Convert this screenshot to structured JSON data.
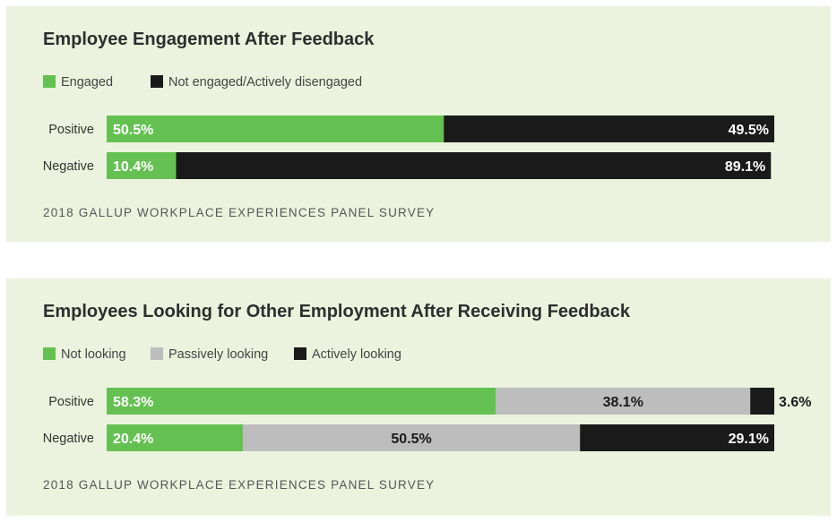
{
  "colors": {
    "green": "#64c151",
    "gray": "#bdbdbd",
    "black": "#1a1a1a",
    "panel_bg": "#ebf3de"
  },
  "chart_data": [
    {
      "type": "bar",
      "orientation": "horizontal",
      "stacked": true,
      "title": "Employee Engagement After Feedback",
      "categories": [
        "Positive",
        "Negative"
      ],
      "series": [
        {
          "name": "Engaged",
          "color": "#64c151",
          "values": [
            50.5,
            10.4
          ],
          "labels": [
            "50.5%",
            "10.4%"
          ]
        },
        {
          "name": "Not engaged/Actively disengaged",
          "color": "#1a1a1a",
          "values": [
            49.5,
            89.1
          ],
          "labels": [
            "49.5%",
            "89.1%"
          ]
        }
      ],
      "xlim": [
        0,
        100
      ],
      "legend_position": "top-left",
      "source": "2018 GALLUP WORKPLACE EXPERIENCES PANEL SURVEY"
    },
    {
      "type": "bar",
      "orientation": "horizontal",
      "stacked": true,
      "title": "Employees Looking for Other Employment After Receiving Feedback",
      "categories": [
        "Positive",
        "Negative"
      ],
      "series": [
        {
          "name": "Not looking",
          "color": "#64c151",
          "values": [
            58.3,
            20.4
          ],
          "labels": [
            "58.3%",
            "20.4%"
          ]
        },
        {
          "name": "Passively looking",
          "color": "#bdbdbd",
          "values": [
            38.1,
            50.5
          ],
          "labels": [
            "38.1%",
            "50.5%"
          ]
        },
        {
          "name": "Actively looking",
          "color": "#1a1a1a",
          "values": [
            3.6,
            29.1
          ],
          "labels": [
            "3.6%",
            "29.1%"
          ]
        }
      ],
      "xlim": [
        0,
        100
      ],
      "legend_position": "top-left",
      "source": "2018 GALLUP WORKPLACE EXPERIENCES PANEL SURVEY"
    }
  ]
}
